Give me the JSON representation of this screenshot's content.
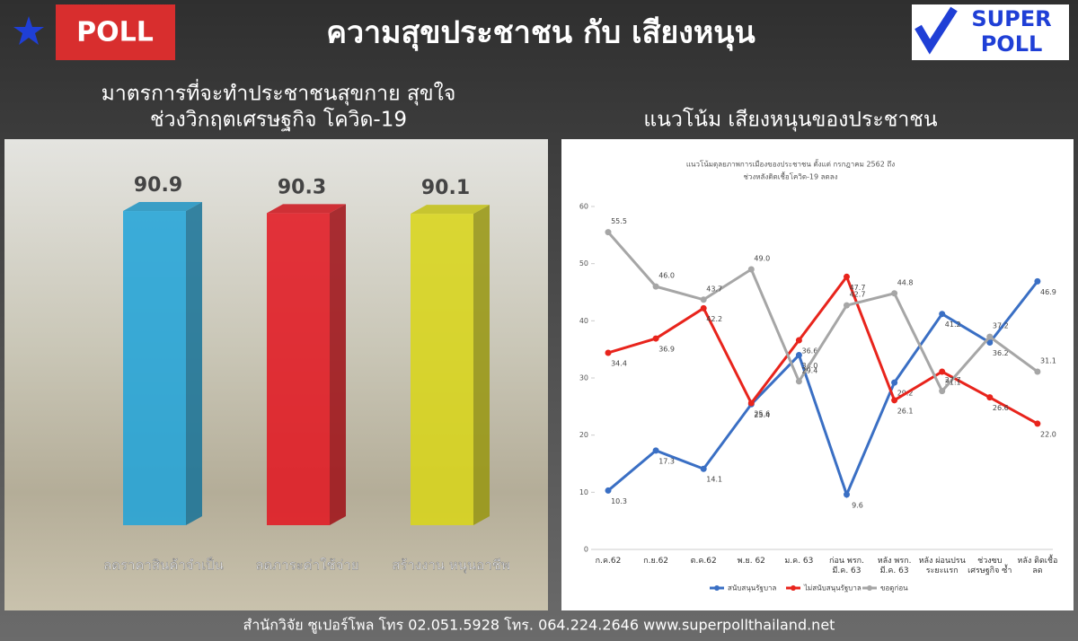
{
  "header": {
    "badge": "POLL",
    "title": "ความสุขประชาชน กับ เสียงหนุน",
    "logo_top": "SUPER",
    "logo_bottom": "POLL"
  },
  "chart_data": [
    {
      "type": "bar",
      "title": "มาตรการที่จะทำประชาชนสุขกาย สุขใจ",
      "subtitle": "ช่วงวิกฤตเศรษฐกิจ โควิด-19",
      "categories": [
        "ลดราคาสินค้าจำเป็น",
        "ลดภาระค่าใช้จ่าย",
        "สร้างงาน หนุนอาชีพ"
      ],
      "values": [
        90.9,
        90.3,
        90.1
      ],
      "colors": [
        "#1fa3d9",
        "#e3141e",
        "#d9d616"
      ],
      "ylim": [
        0,
        100
      ]
    },
    {
      "type": "line",
      "heading": "แนวโน้ม เสียงหนุนของประชาชน",
      "title": "แนวโน้มดุลยภาพการเมืองของประชาชน ตั้งแต่ กรกฎาคม 2562 ถึง",
      "subtitle": "ช่วงหลังติดเชื้อโควิด-19 ลดลง",
      "categories": [
        "ก.ค.62",
        "ก.ย.62",
        "ต.ค.62",
        "พ.ย. 62",
        "ม.ค. 63",
        "ก่อน พรก. มี.ค. 63",
        "หลัง พรก. มี.ค. 63",
        "หลัง ผ่อนปรน ระยะแรก",
        "ช่วงซบ เศรษฐกิจ ซ้ำ",
        "หลัง ติดเชื้อลด"
      ],
      "series": [
        {
          "name": "สนับสนุนรัฐบาล",
          "color": "#3a6fc4",
          "values": [
            10.3,
            17.3,
            14.1,
            25.4,
            34.0,
            9.6,
            29.2,
            41.2,
            36.2,
            46.9
          ],
          "value_labels": [
            "10.3",
            "17.3",
            "14.1",
            "25.4",
            "34.0",
            "9.6",
            "29.2",
            "41.2",
            "36.2",
            "46.9"
          ]
        },
        {
          "name": "ไม่สนับสนุนรัฐบาล",
          "color": "#e8241c",
          "values": [
            34.4,
            36.9,
            42.2,
            25.6,
            36.6,
            47.7,
            26.1,
            31.1,
            26.6,
            22.0
          ],
          "value_labels": [
            "34.4",
            "36.9",
            "42.2",
            "25.6",
            "36.6",
            "47.7",
            "26.1",
            "31.1",
            "26.6",
            "22.0"
          ]
        },
        {
          "name": "ขอดูก่อน",
          "color": "#a6a6a6",
          "values": [
            55.5,
            46.0,
            43.7,
            49.0,
            29.4,
            42.7,
            44.8,
            27.7,
            37.2,
            31.1
          ],
          "value_labels": [
            "55.5",
            "46.0",
            "43.7",
            "49.0",
            "29.4",
            "42.7",
            "44.8",
            "27.7",
            "37.2",
            "31.1"
          ]
        }
      ],
      "ylim": [
        0,
        60
      ],
      "yticks": [
        0,
        10,
        20,
        30,
        40,
        50,
        60
      ],
      "legend": "bottom"
    }
  ],
  "footer": {
    "text": "สำนักวิจัย ซูเปอร์โพล โทร 02.051.5928  โทร. 064.224.2646 www.superpollthailand.net"
  }
}
